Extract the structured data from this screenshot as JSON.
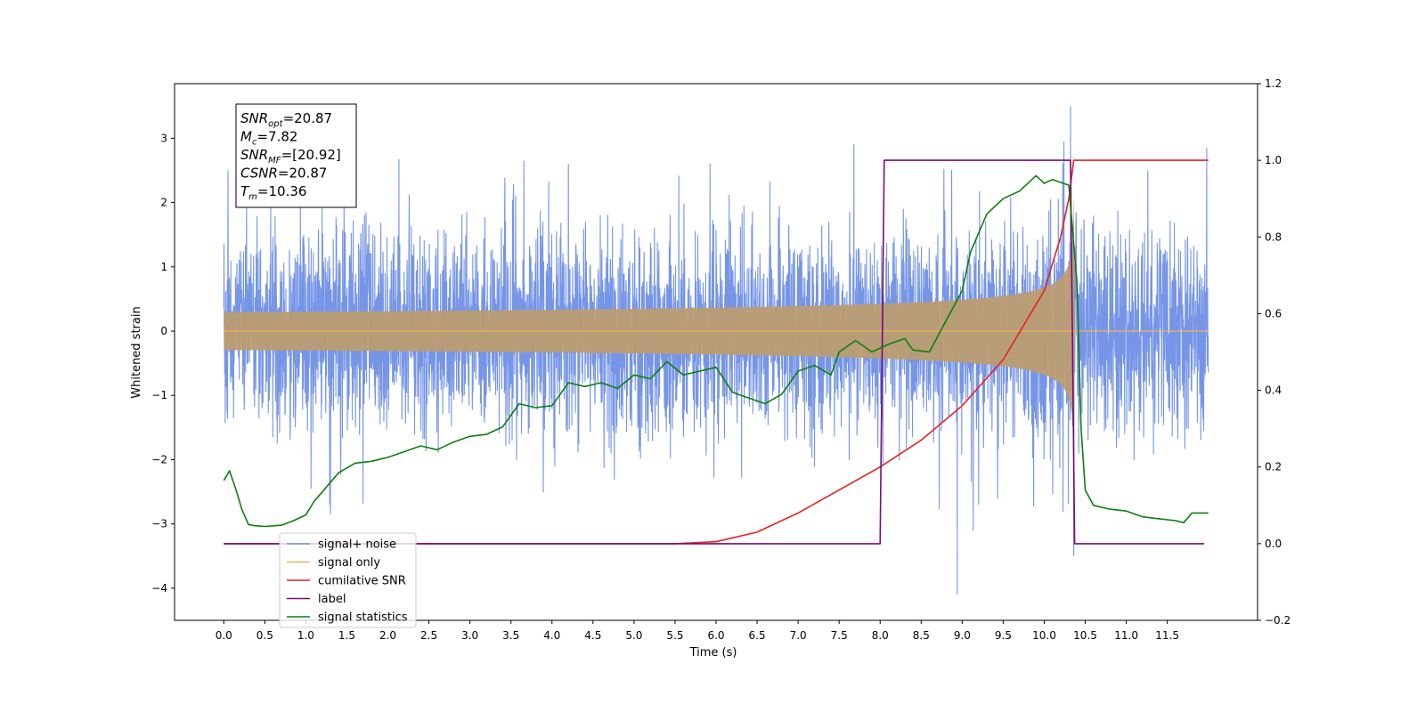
{
  "chart_data": {
    "type": "line",
    "title": "",
    "xlabel": "Time (s)",
    "ylabel": "Whitened strain",
    "y2label": "",
    "xlim": [
      -0.6,
      12.6
    ],
    "ylim": [
      -4.5,
      3.85
    ],
    "y2lim": [
      -0.2,
      1.2
    ],
    "xticks": [
      0.0,
      0.5,
      1.0,
      1.5,
      2.0,
      2.5,
      3.0,
      3.5,
      4.0,
      4.5,
      5.0,
      5.5,
      6.0,
      6.5,
      7.0,
      7.5,
      8.0,
      8.5,
      9.0,
      9.5,
      10.0,
      10.5,
      11.0,
      11.5
    ],
    "yticks": [
      -4,
      -3,
      -2,
      -1,
      0,
      1,
      2,
      3
    ],
    "y2ticks": [
      -0.2,
      0.0,
      0.2,
      0.4,
      0.6,
      0.8,
      1.0,
      1.2
    ],
    "grid": false,
    "legend_position": "lower-left",
    "annotation": [
      {
        "base": "SNR",
        "sub": "opt",
        "value": "=20.87"
      },
      {
        "base": "M",
        "sub": "c",
        "value": "=7.82"
      },
      {
        "base": "SNR",
        "sub": "MF",
        "value": "=[20.92]"
      },
      {
        "base": "CSNR",
        "sub": "",
        "value": "=20.87"
      },
      {
        "base": "T",
        "sub": "m",
        "value": "=10.36"
      }
    ],
    "series": [
      {
        "name": "signal+ noise",
        "axis": "left",
        "color": "#6f8fe6",
        "kind": "noise",
        "x_range": [
          0,
          12
        ],
        "noise_sigma": 0.75,
        "spikes": [
          [
            0.05,
            2.5
          ],
          [
            1.3,
            -2.85
          ],
          [
            4.2,
            2.6
          ],
          [
            8.94,
            -4.1
          ],
          [
            9.2,
            -2.7
          ],
          [
            10.24,
            2.95
          ],
          [
            10.32,
            3.5
          ],
          [
            10.36,
            -3.5
          ],
          [
            11.98,
            2.85
          ]
        ]
      },
      {
        "name": "signal only",
        "axis": "left",
        "color": "#f5b253",
        "kind": "chirp",
        "tc": 10.36,
        "peak": 2.1
      },
      {
        "name": "cumilative SNR",
        "axis": "right",
        "color": "#e8211c",
        "points": [
          [
            0.0,
            0.0
          ],
          [
            5.5,
            0.0
          ],
          [
            6.0,
            0.005
          ],
          [
            6.5,
            0.03
          ],
          [
            7.0,
            0.08
          ],
          [
            7.5,
            0.14
          ],
          [
            8.0,
            0.2
          ],
          [
            8.5,
            0.27
          ],
          [
            9.0,
            0.36
          ],
          [
            9.5,
            0.48
          ],
          [
            10.0,
            0.66
          ],
          [
            10.2,
            0.8
          ],
          [
            10.3,
            0.9
          ],
          [
            10.36,
            1.0
          ],
          [
            12.0,
            1.0
          ]
        ]
      },
      {
        "name": "label",
        "axis": "right",
        "color": "#7b0a7b",
        "points": [
          [
            0.0,
            0.0
          ],
          [
            8.0,
            0.0
          ],
          [
            8.05,
            1.0
          ],
          [
            10.32,
            1.0
          ],
          [
            10.37,
            0.0
          ],
          [
            11.95,
            0.0
          ]
        ]
      },
      {
        "name": "signal statistics",
        "axis": "right",
        "color": "#0d7f0d",
        "points": [
          [
            0.0,
            0.165
          ],
          [
            0.07,
            0.19
          ],
          [
            0.15,
            0.14
          ],
          [
            0.22,
            0.09
          ],
          [
            0.3,
            0.05
          ],
          [
            0.37,
            0.047
          ],
          [
            0.5,
            0.045
          ],
          [
            0.7,
            0.048
          ],
          [
            0.85,
            0.06
          ],
          [
            1.0,
            0.075
          ],
          [
            1.1,
            0.11
          ],
          [
            1.2,
            0.135
          ],
          [
            1.4,
            0.185
          ],
          [
            1.6,
            0.21
          ],
          [
            1.8,
            0.215
          ],
          [
            2.0,
            0.225
          ],
          [
            2.2,
            0.24
          ],
          [
            2.4,
            0.255
          ],
          [
            2.6,
            0.245
          ],
          [
            2.8,
            0.265
          ],
          [
            3.0,
            0.28
          ],
          [
            3.2,
            0.285
          ],
          [
            3.4,
            0.305
          ],
          [
            3.6,
            0.365
          ],
          [
            3.8,
            0.355
          ],
          [
            4.0,
            0.36
          ],
          [
            4.2,
            0.42
          ],
          [
            4.4,
            0.41
          ],
          [
            4.6,
            0.42
          ],
          [
            4.8,
            0.405
          ],
          [
            5.0,
            0.44
          ],
          [
            5.2,
            0.43
          ],
          [
            5.4,
            0.475
          ],
          [
            5.6,
            0.44
          ],
          [
            5.8,
            0.45
          ],
          [
            6.0,
            0.46
          ],
          [
            6.2,
            0.395
          ],
          [
            6.4,
            0.38
          ],
          [
            6.6,
            0.365
          ],
          [
            6.8,
            0.39
          ],
          [
            7.0,
            0.45
          ],
          [
            7.2,
            0.465
          ],
          [
            7.4,
            0.44
          ],
          [
            7.5,
            0.5
          ],
          [
            7.7,
            0.53
          ],
          [
            7.9,
            0.5
          ],
          [
            8.1,
            0.52
          ],
          [
            8.3,
            0.535
          ],
          [
            8.4,
            0.505
          ],
          [
            8.6,
            0.5
          ],
          [
            8.8,
            0.58
          ],
          [
            9.0,
            0.66
          ],
          [
            9.1,
            0.76
          ],
          [
            9.3,
            0.86
          ],
          [
            9.5,
            0.9
          ],
          [
            9.7,
            0.92
          ],
          [
            9.9,
            0.96
          ],
          [
            10.0,
            0.94
          ],
          [
            10.1,
            0.95
          ],
          [
            10.3,
            0.935
          ],
          [
            10.4,
            0.68
          ],
          [
            10.45,
            0.3
          ],
          [
            10.5,
            0.14
          ],
          [
            10.6,
            0.1
          ],
          [
            10.8,
            0.09
          ],
          [
            11.0,
            0.085
          ],
          [
            11.2,
            0.07
          ],
          [
            11.4,
            0.065
          ],
          [
            11.6,
            0.06
          ],
          [
            11.7,
            0.055
          ],
          [
            11.8,
            0.08
          ],
          [
            12.0,
            0.08
          ]
        ]
      }
    ]
  }
}
